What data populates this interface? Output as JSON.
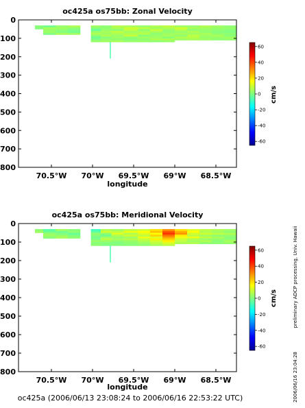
{
  "chart_data": [
    {
      "type": "heatmap",
      "title": "oc425a os75bb: Zonal Velocity",
      "xlabel": "longitude",
      "ylabel": "",
      "x_tick_labels": [
        "70.5°W",
        "70°W",
        "69.5°W",
        "69°W",
        "68.5°W"
      ],
      "x_ticks": [
        -70.5,
        -70.0,
        -69.5,
        -69.0,
        -68.5
      ],
      "xlim": [
        -70.9,
        -68.25
      ],
      "y_tick_labels": [
        "0",
        "100",
        "200",
        "300",
        "400",
        "500",
        "600",
        "700",
        "800"
      ],
      "y_ticks": [
        0,
        100,
        200,
        300,
        400,
        500,
        600,
        700,
        800
      ],
      "ylim": [
        800,
        0
      ],
      "colorbar": {
        "unit": "cm/s",
        "ticks": [
          60,
          40,
          20,
          0,
          -20,
          -40,
          -60
        ],
        "range": [
          -65,
          65
        ]
      },
      "segments": [
        {
          "x0": -70.7,
          "x1": -70.6,
          "values": [
            1,
            1
          ]
        },
        {
          "x0": -70.6,
          "x1": -70.45,
          "values": [
            -2,
            5,
            3,
            4,
            0
          ]
        },
        {
          "x0": -70.45,
          "x1": -70.3,
          "values": [
            3,
            4,
            2,
            0,
            5
          ]
        },
        {
          "x0": -70.3,
          "x1": -70.15,
          "values": [
            6,
            2,
            0,
            -2,
            4
          ]
        },
        {
          "x0": -70.02,
          "x1": -69.9,
          "values": [
            4,
            1,
            -3,
            3,
            6,
            2,
            -2,
            0,
            3
          ]
        },
        {
          "x0": -69.9,
          "x1": -69.77,
          "values": [
            2,
            2,
            3,
            5,
            4,
            6,
            1,
            3,
            4
          ]
        },
        {
          "x0": -69.77,
          "x1": -69.62,
          "values": [
            7,
            5,
            2,
            8,
            6,
            3,
            4,
            2,
            5
          ]
        },
        {
          "x0": -69.62,
          "x1": -69.45,
          "values": [
            5,
            10,
            8,
            4,
            6,
            9,
            2,
            1,
            3
          ]
        },
        {
          "x0": -69.45,
          "x1": -69.3,
          "values": [
            3,
            8,
            2,
            5,
            7,
            1,
            4,
            2,
            3
          ]
        },
        {
          "x0": -69.3,
          "x1": -69.15,
          "values": [
            6,
            4,
            9,
            5,
            2,
            3,
            4,
            6,
            2
          ]
        },
        {
          "x0": -69.15,
          "x1": -69.0,
          "values": [
            8,
            6,
            3,
            2,
            4,
            5,
            1,
            6,
            3
          ]
        },
        {
          "x0": -69.0,
          "x1": -68.85,
          "values": [
            4,
            10,
            7,
            3,
            5,
            2,
            6,
            4
          ]
        },
        {
          "x0": -68.85,
          "x1": -68.7,
          "values": [
            3,
            5,
            2,
            6,
            4,
            8,
            7,
            5
          ]
        },
        {
          "x0": -68.7,
          "x1": -68.55,
          "values": [
            6,
            4,
            3,
            2,
            5,
            4,
            3,
            4
          ]
        },
        {
          "x0": -68.55,
          "x1": -68.4,
          "values": [
            4,
            3,
            2,
            1,
            2,
            5,
            3,
            2
          ]
        },
        {
          "x0": -68.4,
          "x1": -68.25,
          "values": [
            2,
            3,
            1,
            0,
            2,
            1,
            4,
            3
          ]
        }
      ]
    },
    {
      "type": "heatmap",
      "title": "oc425a os75bb: Meridional Velocity",
      "xlabel": "longitude",
      "ylabel": "",
      "x_tick_labels": [
        "70.5°W",
        "70°W",
        "69.5°W",
        "69°W",
        "68.5°W"
      ],
      "x_ticks": [
        -70.5,
        -70.0,
        -69.5,
        -69.0,
        -68.5
      ],
      "xlim": [
        -70.9,
        -68.25
      ],
      "y_tick_labels": [
        "0",
        "100",
        "200",
        "300",
        "400",
        "500",
        "600",
        "700",
        "800"
      ],
      "y_ticks": [
        0,
        100,
        200,
        300,
        400,
        500,
        600,
        700,
        800
      ],
      "ylim": [
        800,
        0
      ],
      "colorbar": {
        "unit": "cm/s",
        "ticks": [
          60,
          40,
          20,
          0,
          -20,
          -40,
          -60
        ],
        "range": [
          -65,
          65
        ]
      },
      "segments": [
        {
          "x0": -70.7,
          "x1": -70.6,
          "values": [
            2,
            4
          ]
        },
        {
          "x0": -70.6,
          "x1": -70.45,
          "values": [
            -5,
            -2,
            3,
            4,
            1
          ]
        },
        {
          "x0": -70.45,
          "x1": -70.3,
          "values": [
            4,
            -2,
            0,
            3,
            5
          ]
        },
        {
          "x0": -70.3,
          "x1": -70.15,
          "values": [
            1,
            2,
            -3,
            0,
            2
          ]
        },
        {
          "x0": -70.02,
          "x1": -69.9,
          "values": [
            -8,
            -4,
            2,
            1,
            -2,
            0,
            3,
            1,
            2
          ]
        },
        {
          "x0": -69.9,
          "x1": -69.77,
          "values": [
            6,
            10,
            2,
            -2,
            4,
            8,
            3,
            1,
            0
          ]
        },
        {
          "x0": -69.77,
          "x1": -69.62,
          "values": [
            4,
            8,
            12,
            6,
            3,
            5,
            2,
            0,
            1
          ]
        },
        {
          "x0": -69.62,
          "x1": -69.45,
          "values": [
            8,
            14,
            6,
            10,
            4,
            7,
            3,
            2,
            1
          ]
        },
        {
          "x0": -69.45,
          "x1": -69.3,
          "values": [
            10,
            16,
            12,
            8,
            14,
            9,
            6,
            4,
            2
          ]
        },
        {
          "x0": -69.3,
          "x1": -69.15,
          "values": [
            20,
            24,
            16,
            22,
            12,
            18,
            10,
            8,
            5
          ]
        },
        {
          "x0": -69.15,
          "x1": -69.0,
          "values": [
            30,
            38,
            42,
            34,
            28,
            22,
            18,
            12,
            8
          ]
        },
        {
          "x0": -69.0,
          "x1": -68.85,
          "values": [
            20,
            26,
            30,
            18,
            14,
            10,
            8,
            6
          ]
        },
        {
          "x0": -68.85,
          "x1": -68.7,
          "values": [
            12,
            16,
            10,
            8,
            14,
            6,
            4,
            6
          ]
        },
        {
          "x0": -68.7,
          "x1": -68.55,
          "values": [
            8,
            6,
            10,
            4,
            8,
            3,
            6,
            2
          ]
        },
        {
          "x0": -68.55,
          "x1": -68.4,
          "values": [
            6,
            4,
            8,
            2,
            5,
            3,
            1,
            2
          ]
        },
        {
          "x0": -68.4,
          "x1": -68.25,
          "values": [
            4,
            2,
            6,
            3,
            1,
            2,
            5,
            3
          ]
        }
      ]
    }
  ],
  "side_notes": {
    "processing": "preliminary ADCP processing,   Univ. Hawaii",
    "timestamp": "2006/06/16 23:04:28"
  },
  "footer": "oc425a (2006/06/13 23:08:24 to 2006/06/16 22:53:22 UTC)"
}
